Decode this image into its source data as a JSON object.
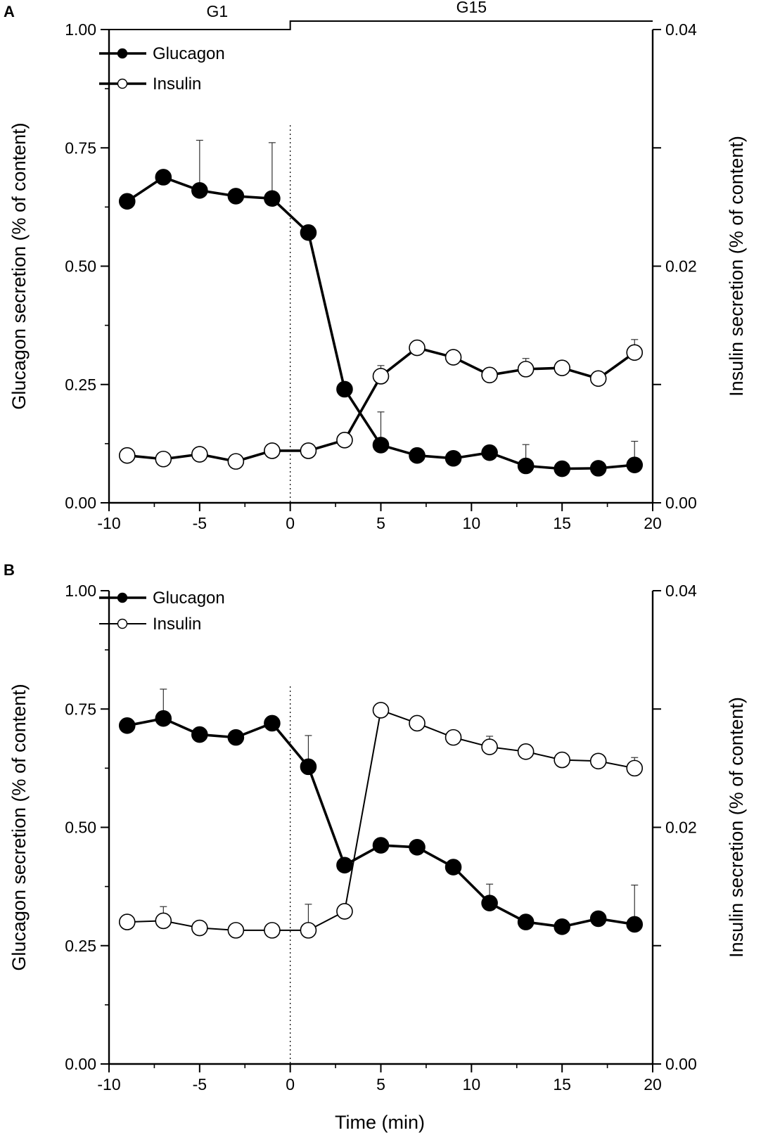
{
  "figure": {
    "xlabel": "Time (min)",
    "x_ticks": [
      "-10",
      "-5",
      "0",
      "5",
      "10",
      "15",
      "20"
    ],
    "condition_labels": [
      "G1",
      "G15"
    ]
  },
  "chart_data": [
    {
      "panel": "A",
      "type": "line",
      "xlim": [
        -10,
        20
      ],
      "ylabel_left": "Glucagon secretion (% of content)",
      "ylabel_right": "Insulin secretion (% of content)",
      "ylim_left": [
        0,
        1
      ],
      "ylim_right": [
        0,
        0.04
      ],
      "left_ticks": [
        "0.00",
        "0.25",
        "0.50",
        "0.75",
        "1.00"
      ],
      "right_ticks": [
        "0.00",
        "0.02",
        "0.04"
      ],
      "x": [
        -9,
        -7,
        -5,
        -3,
        -1,
        1,
        3,
        5,
        7,
        9,
        11,
        13,
        15,
        17,
        19
      ],
      "vline_x": 0,
      "series": [
        {
          "name": "Glucagon",
          "axis": "left",
          "marker": "filled",
          "values": [
            0.637,
            0.688,
            0.66,
            0.648,
            0.643,
            0.571,
            0.24,
            0.122,
            0.1,
            0.094,
            0.106,
            0.078,
            0.072,
            0.073,
            0.08
          ],
          "err": [
            0,
            0,
            0.106,
            0,
            0.118,
            0,
            0,
            0.07,
            0,
            0,
            0,
            0.045,
            0,
            0,
            0.05
          ]
        },
        {
          "name": "Insulin",
          "axis": "right",
          "marker": "open",
          "values": [
            0.004,
            0.0037,
            0.0041,
            0.0035,
            0.0044,
            0.0044,
            0.0053,
            0.0107,
            0.0131,
            0.0123,
            0.0108,
            0.0113,
            0.0114,
            0.0105,
            0.0127
          ],
          "err": [
            0,
            0,
            0.0004,
            0,
            0.0005,
            0,
            0,
            0.0009,
            0,
            0,
            0,
            0.0009,
            0,
            0,
            0.0011
          ]
        }
      ]
    },
    {
      "panel": "B",
      "type": "line",
      "xlim": [
        -10,
        20
      ],
      "ylabel_left": "Glucagon secretion (% of content)",
      "ylabel_right": "Insulin secretion (% of content)",
      "ylim_left": [
        0,
        1
      ],
      "ylim_right": [
        0,
        0.04
      ],
      "left_ticks": [
        "0.00",
        "0.25",
        "0.50",
        "0.75",
        "1.00"
      ],
      "right_ticks": [
        "0.00",
        "0.02",
        "0.04"
      ],
      "x": [
        -9,
        -7,
        -5,
        -3,
        -1,
        1,
        3,
        5,
        7,
        9,
        11,
        13,
        15,
        17,
        19
      ],
      "vline_x": 0,
      "series": [
        {
          "name": "Glucagon",
          "axis": "left",
          "marker": "filled",
          "values": [
            0.715,
            0.73,
            0.696,
            0.69,
            0.72,
            0.628,
            0.42,
            0.462,
            0.458,
            0.416,
            0.34,
            0.3,
            0.29,
            0.307,
            0.295
          ],
          "err": [
            0,
            0.062,
            0,
            0,
            0,
            0.066,
            0,
            0,
            0,
            0,
            0.04,
            0,
            0,
            0,
            0.083
          ]
        },
        {
          "name": "Insulin",
          "axis": "right",
          "marker": "open",
          "values": [
            0.012,
            0.0121,
            0.0115,
            0.0113,
            0.0113,
            0.0113,
            0.0129,
            0.0299,
            0.0288,
            0.0276,
            0.0268,
            0.0264,
            0.0257,
            0.0256,
            0.025
          ],
          "err": [
            0,
            0.0012,
            0,
            0,
            0,
            0.0022,
            0,
            0,
            0,
            0,
            0.0009,
            0,
            0,
            0,
            0.0009
          ]
        }
      ]
    }
  ]
}
